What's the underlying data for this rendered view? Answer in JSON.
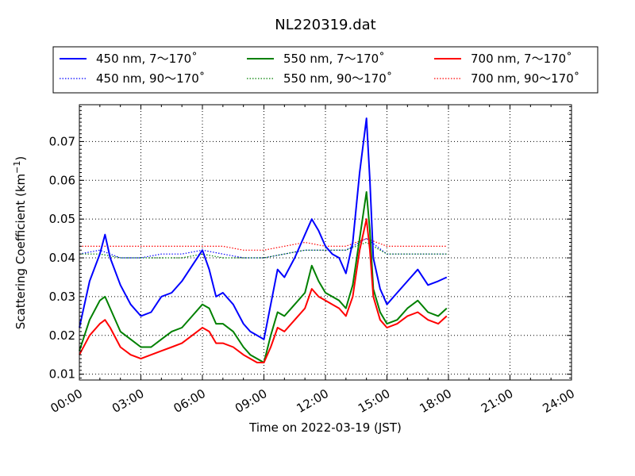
{
  "chart_data": {
    "type": "line",
    "title": "NL220319.dat",
    "xlabel": "Time on 2022-03-19 (JST)",
    "ylabel": "Scattering Coefficient (km",
    "ylabel_unit_suffix": "−1",
    "xlim": [
      "00:00",
      "24:00"
    ],
    "ylim": [
      0.0085,
      0.0795
    ],
    "x_ticks": [
      "00:00",
      "03:00",
      "06:00",
      "09:00",
      "12:00",
      "15:00",
      "18:00",
      "21:00",
      "24:00"
    ],
    "y_ticks": [
      "0.01",
      "0.02",
      "0.03",
      "0.04",
      "0.05",
      "0.06",
      "0.07"
    ],
    "grid": true,
    "legend_placement": "top",
    "series": [
      {
        "name": "450 nm, 7～170˚",
        "color": "#0000ff",
        "style": "solid",
        "x": [
          "00:00",
          "00:30",
          "01:00",
          "01:15",
          "01:30",
          "02:00",
          "02:30",
          "03:00",
          "03:30",
          "04:00",
          "04:30",
          "05:00",
          "05:30",
          "06:00",
          "06:20",
          "06:40",
          "07:00",
          "07:30",
          "08:00",
          "08:20",
          "08:40",
          "09:00",
          "09:20",
          "09:40",
          "10:00",
          "10:30",
          "11:00",
          "11:20",
          "11:40",
          "12:00",
          "12:20",
          "12:40",
          "13:00",
          "13:20",
          "13:40",
          "14:00",
          "14:10",
          "14:20",
          "14:40",
          "15:00",
          "15:30",
          "16:00",
          "16:30",
          "17:00",
          "17:30",
          "17:55"
        ],
        "values": [
          0.022,
          0.034,
          0.041,
          0.046,
          0.04,
          0.033,
          0.028,
          0.025,
          0.026,
          0.03,
          0.031,
          0.034,
          0.038,
          0.042,
          0.037,
          0.03,
          0.031,
          0.028,
          0.023,
          0.021,
          0.02,
          0.019,
          0.028,
          0.037,
          0.035,
          0.04,
          0.046,
          0.05,
          0.047,
          0.043,
          0.041,
          0.04,
          0.036,
          0.044,
          0.062,
          0.076,
          0.06,
          0.04,
          0.032,
          0.028,
          0.031,
          0.034,
          0.037,
          0.033,
          0.034,
          0.035
        ]
      },
      {
        "name": "550 nm, 7～170˚",
        "color": "#008000",
        "style": "solid",
        "x": [
          "00:00",
          "00:30",
          "01:00",
          "01:15",
          "01:30",
          "02:00",
          "02:30",
          "03:00",
          "03:30",
          "04:00",
          "04:30",
          "05:00",
          "05:30",
          "06:00",
          "06:20",
          "06:40",
          "07:00",
          "07:30",
          "08:00",
          "08:20",
          "08:40",
          "09:00",
          "09:20",
          "09:40",
          "10:00",
          "10:30",
          "11:00",
          "11:20",
          "11:40",
          "12:00",
          "12:20",
          "12:40",
          "13:00",
          "13:20",
          "13:40",
          "14:00",
          "14:10",
          "14:20",
          "14:40",
          "15:00",
          "15:30",
          "16:00",
          "16:30",
          "17:00",
          "17:30",
          "17:55"
        ],
        "values": [
          0.016,
          0.024,
          0.029,
          0.03,
          0.027,
          0.021,
          0.019,
          0.017,
          0.017,
          0.019,
          0.021,
          0.022,
          0.025,
          0.028,
          0.027,
          0.023,
          0.023,
          0.021,
          0.017,
          0.015,
          0.014,
          0.013,
          0.02,
          0.026,
          0.025,
          0.028,
          0.031,
          0.038,
          0.034,
          0.031,
          0.03,
          0.029,
          0.027,
          0.033,
          0.045,
          0.057,
          0.047,
          0.032,
          0.026,
          0.023,
          0.024,
          0.027,
          0.029,
          0.026,
          0.025,
          0.027
        ]
      },
      {
        "name": "700 nm, 7～170˚",
        "color": "#ff0000",
        "style": "solid",
        "x": [
          "00:00",
          "00:30",
          "01:00",
          "01:15",
          "01:30",
          "02:00",
          "02:30",
          "03:00",
          "03:30",
          "04:00",
          "04:30",
          "05:00",
          "05:30",
          "06:00",
          "06:20",
          "06:40",
          "07:00",
          "07:30",
          "08:00",
          "08:20",
          "08:40",
          "09:00",
          "09:20",
          "09:40",
          "10:00",
          "10:30",
          "11:00",
          "11:20",
          "11:40",
          "12:00",
          "12:20",
          "12:40",
          "13:00",
          "13:20",
          "13:40",
          "14:00",
          "14:10",
          "14:20",
          "14:40",
          "15:00",
          "15:30",
          "16:00",
          "16:30",
          "17:00",
          "17:30",
          "17:55"
        ],
        "values": [
          0.015,
          0.02,
          0.023,
          0.024,
          0.022,
          0.017,
          0.015,
          0.014,
          0.015,
          0.016,
          0.017,
          0.018,
          0.02,
          0.022,
          0.021,
          0.018,
          0.018,
          0.017,
          0.015,
          0.014,
          0.013,
          0.013,
          0.017,
          0.022,
          0.021,
          0.024,
          0.027,
          0.032,
          0.03,
          0.029,
          0.028,
          0.027,
          0.025,
          0.03,
          0.042,
          0.05,
          0.042,
          0.03,
          0.024,
          0.022,
          0.023,
          0.025,
          0.026,
          0.024,
          0.023,
          0.025
        ]
      },
      {
        "name": "450 nm, 90～170˚",
        "color": "#0000ff",
        "style": "dotted",
        "x": [
          "00:00",
          "01:00",
          "02:00",
          "03:00",
          "04:00",
          "05:00",
          "06:00",
          "07:00",
          "08:00",
          "09:00",
          "10:00",
          "11:00",
          "12:00",
          "13:00",
          "14:00",
          "15:00",
          "16:00",
          "17:00",
          "17:55"
        ],
        "values": [
          0.041,
          0.042,
          0.04,
          0.04,
          0.041,
          0.041,
          0.042,
          0.041,
          0.04,
          0.04,
          0.041,
          0.042,
          0.042,
          0.042,
          0.045,
          0.041,
          0.041,
          0.041,
          0.041
        ]
      },
      {
        "name": "550 nm, 90～170˚",
        "color": "#008000",
        "style": "dotted",
        "x": [
          "00:00",
          "01:00",
          "02:00",
          "03:00",
          "04:00",
          "05:00",
          "06:00",
          "07:00",
          "08:00",
          "09:00",
          "10:00",
          "11:00",
          "12:00",
          "13:00",
          "14:00",
          "15:00",
          "16:00",
          "17:00",
          "17:55"
        ],
        "values": [
          0.041,
          0.041,
          0.04,
          0.04,
          0.04,
          0.04,
          0.041,
          0.04,
          0.04,
          0.04,
          0.041,
          0.042,
          0.042,
          0.042,
          0.044,
          0.041,
          0.041,
          0.041,
          0.041
        ]
      },
      {
        "name": "700 nm, 90～170˚",
        "color": "#ff0000",
        "style": "dotted",
        "x": [
          "00:00",
          "01:00",
          "02:00",
          "03:00",
          "04:00",
          "05:00",
          "06:00",
          "07:00",
          "08:00",
          "09:00",
          "10:00",
          "11:00",
          "12:00",
          "13:00",
          "14:00",
          "15:00",
          "16:00",
          "17:00",
          "17:55"
        ],
        "values": [
          0.043,
          0.043,
          0.043,
          0.043,
          0.043,
          0.043,
          0.043,
          0.043,
          0.042,
          0.042,
          0.043,
          0.044,
          0.043,
          0.043,
          0.045,
          0.043,
          0.043,
          0.043,
          0.043
        ]
      }
    ]
  }
}
